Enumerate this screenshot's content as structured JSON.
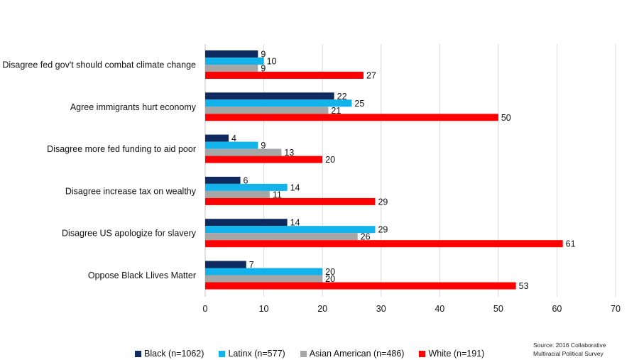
{
  "chart_data": {
    "type": "bar",
    "orientation": "horizontal",
    "categories": [
      "Disagree fed gov't should combat climate change",
      "Agree immigrants hurt economy",
      "Disagree more fed funding to aid poor",
      "Disagree increase tax on wealthy",
      "Disagree US apologize for slavery",
      "Oppose Black Llives Matter"
    ],
    "series": [
      {
        "name": "Black (n=1062)",
        "color": "#0f2a5e",
        "values": [
          9,
          22,
          4,
          6,
          14,
          7
        ]
      },
      {
        "name": "Latinx (n=577)",
        "color": "#12b3ea",
        "values": [
          10,
          25,
          9,
          14,
          29,
          20
        ]
      },
      {
        "name": "Asian American (n=486)",
        "color": "#a6a6a6",
        "values": [
          9,
          21,
          13,
          11,
          26,
          20
        ]
      },
      {
        "name": "White (n=191)",
        "color": "#ff0000",
        "values": [
          27,
          50,
          20,
          29,
          61,
          53
        ]
      }
    ],
    "xlim": [
      0,
      70
    ],
    "xticks": [
      0,
      10,
      20,
      30,
      40,
      50,
      60,
      70
    ],
    "grid": "vertical",
    "legend_position": "bottom",
    "source": [
      "Source: 2016 Collaborative",
      "Multiracial Political Survey"
    ]
  }
}
